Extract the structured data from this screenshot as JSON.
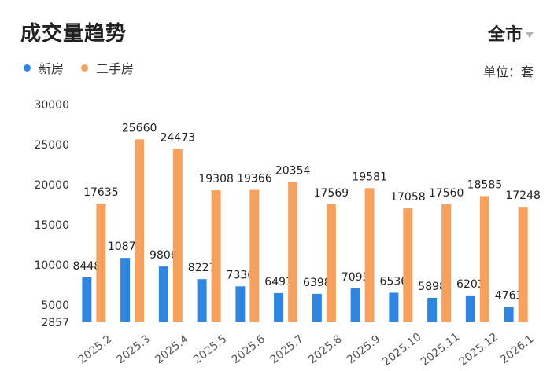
{
  "header": {
    "title": "成交量趋势",
    "region": "全市",
    "unit": "单位：套"
  },
  "colors": {
    "new_home": "#2f85e0",
    "second_hand": "#f6a25e",
    "caret": "#b5b5b5"
  },
  "icons": {
    "region_dropdown": "chevron-down-icon"
  },
  "chart_data": {
    "type": "bar",
    "categories": [
      "2025.2",
      "2025.3",
      "2025.4",
      "2025.5",
      "2025.6",
      "2025.7",
      "2025.8",
      "2025.9",
      "2025.10",
      "2025.11",
      "2025.12",
      "2026.1"
    ],
    "series": [
      {
        "name": "新房",
        "values": [
          8448,
          10873,
          9806,
          8227,
          7336,
          6491,
          6398,
          7093,
          6536,
          5898,
          6203,
          4763
        ]
      },
      {
        "name": "二手房",
        "values": [
          17635,
          25660,
          24473,
          19308,
          19366,
          20354,
          17569,
          19581,
          17058,
          17560,
          18585,
          17248
        ]
      }
    ],
    "yticks": [
      2857,
      5000,
      10000,
      15000,
      20000,
      25000,
      30000
    ],
    "ylim": [
      2857,
      30000
    ],
    "legend_position": "top-left",
    "grid": false
  }
}
